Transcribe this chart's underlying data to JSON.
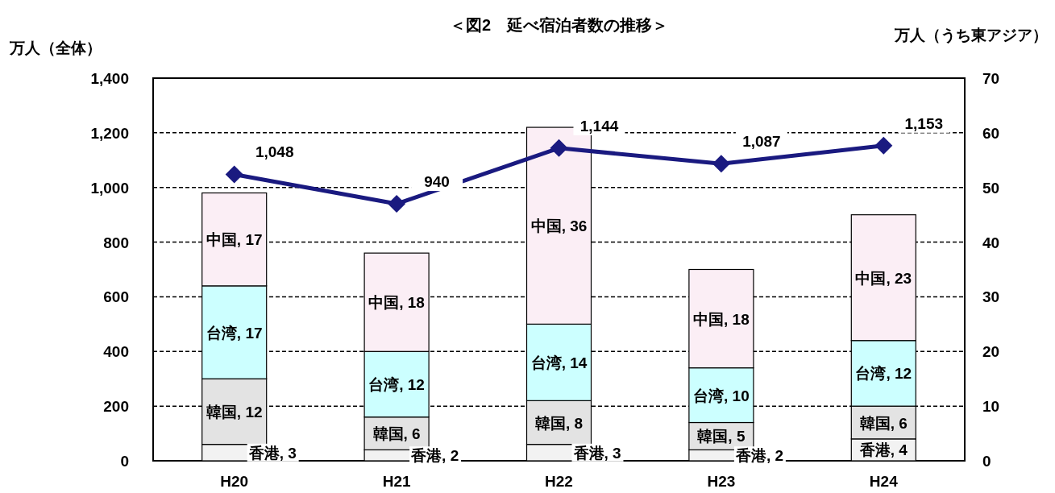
{
  "chart_data": {
    "type": "bar",
    "title": "＜図2　延べ宿泊者数の推移＞",
    "ylabel": "万人（全体）",
    "y2label": "万人（うち東アジア）",
    "categories": [
      "H20",
      "H21",
      "H22",
      "H23",
      "H24"
    ],
    "stacked": true,
    "series": [
      {
        "axis": "y2",
        "color": "#f2f2f2",
        "values": [
          3,
          2,
          3,
          2,
          4
        ],
        "value_labels": [
          "香港, 3",
          "香港, 2",
          "香港, 3",
          "香港, 2",
          "香港, 4"
        ]
      },
      {
        "axis": "y2",
        "color": "#e3e3e3",
        "values": [
          12,
          6,
          8,
          5,
          6
        ],
        "value_labels": [
          "韓国, 12",
          "韓国, 6",
          "韓国, 8",
          "韓国, 5",
          "韓国, 6"
        ]
      },
      {
        "axis": "y2",
        "color": "#ccffff",
        "values": [
          17,
          12,
          14,
          10,
          12
        ],
        "value_labels": [
          "台湾, 17",
          "台湾, 12",
          "台湾, 14",
          "台湾, 10",
          "台湾, 12"
        ]
      },
      {
        "axis": "y2",
        "color": "#fbeef5",
        "values": [
          17,
          18,
          36,
          18,
          23
        ],
        "value_labels": [
          "中国, 17",
          "中国, 18",
          "中国, 36",
          "中国, 18",
          "中国, 23"
        ]
      },
      {
        "type": "line",
        "axis": "y",
        "color": "#1a1a80",
        "values": [
          1048,
          940,
          1144,
          1087,
          1153
        ],
        "value_labels": [
          "1,048",
          "940",
          "1,144",
          "1,087",
          "1,153"
        ]
      }
    ],
    "marker": "diamond",
    "line_style": "solid",
    "grid": "y",
    "ylim": [
      0,
      1400
    ],
    "yticks": [
      0,
      200,
      400,
      600,
      800,
      {
        "value": 1000,
        "label": "1,000"
      },
      {
        "value": 1200,
        "label": "1,200"
      },
      {
        "value": 1400,
        "label": "1,400"
      }
    ],
    "y2lim": [
      0,
      70
    ],
    "y2ticks": [
      0,
      10,
      20,
      30,
      40,
      50,
      60,
      70
    ]
  }
}
